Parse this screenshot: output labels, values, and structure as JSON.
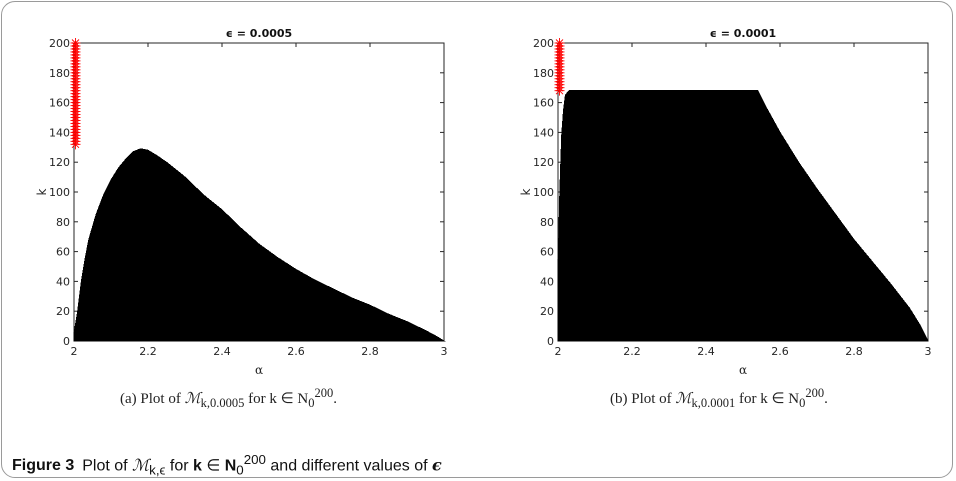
{
  "chart_data": [
    {
      "type": "area",
      "title": "ϵ = 0.0005",
      "xlabel": "α",
      "ylabel": "k",
      "xlim": [
        2,
        3
      ],
      "ylim": [
        0,
        200
      ],
      "x_ticks": [
        "2",
        "2.2",
        "2.4",
        "2.6",
        "2.8",
        "3"
      ],
      "y_ticks": [
        "0",
        "20",
        "40",
        "60",
        "80",
        "100",
        "120",
        "140",
        "160",
        "180",
        "200"
      ],
      "grid": false,
      "fill_color": "#000000",
      "marker_color": "#ff0000",
      "region_upper_boundary": {
        "x": [
          2.0,
          2.01,
          2.02,
          2.03,
          2.04,
          2.06,
          2.08,
          2.1,
          2.12,
          2.14,
          2.16,
          2.18,
          2.2,
          2.22,
          2.25,
          2.3,
          2.35,
          2.4,
          2.45,
          2.5,
          2.55,
          2.6,
          2.65,
          2.7,
          2.75,
          2.8,
          2.85,
          2.9,
          2.95,
          2.98,
          3.0
        ],
        "y": [
          5,
          20,
          40,
          55,
          68,
          85,
          98,
          108,
          116,
          122,
          127,
          129,
          128,
          125,
          120,
          110,
          98,
          88,
          76,
          65,
          56,
          48,
          41,
          35,
          29,
          24,
          18,
          13,
          7,
          3,
          0
        ]
      },
      "red_markers": {
        "x": 2.0,
        "y_range": [
          132,
          200
        ]
      }
    },
    {
      "type": "area",
      "title": "ϵ = 0.0001",
      "xlabel": "α",
      "ylabel": "k",
      "xlim": [
        2,
        3
      ],
      "ylim": [
        0,
        200
      ],
      "x_ticks": [
        "2",
        "2.2",
        "2.4",
        "2.6",
        "2.8",
        "3"
      ],
      "y_ticks": [
        "0",
        "20",
        "40",
        "60",
        "80",
        "100",
        "120",
        "140",
        "160",
        "180",
        "200"
      ],
      "grid": false,
      "fill_color": "#000000",
      "marker_color": "#ff0000",
      "region_upper_boundary": {
        "x": [
          2.0,
          2.005,
          2.01,
          2.015,
          2.02,
          2.03,
          2.54,
          2.56,
          2.6,
          2.65,
          2.7,
          2.75,
          2.8,
          2.85,
          2.9,
          2.95,
          2.98,
          3.0
        ],
        "y": [
          48,
          100,
          138,
          155,
          165,
          168,
          168,
          158,
          140,
          120,
          102,
          85,
          68,
          53,
          38,
          22,
          10,
          0
        ]
      },
      "red_markers": {
        "x": 2.0,
        "y_range": [
          168,
          200
        ]
      }
    }
  ],
  "captions": {
    "a": {
      "prefix": "(a) Plot of ",
      "symbol": "ℳ",
      "sub": "k,0.0005",
      "mid": " for k ∈ N",
      "sub0": "0",
      "sup": "200",
      "end": "."
    },
    "b": {
      "prefix": "(b) Plot of ",
      "symbol": "ℳ",
      "sub": "k,0.0001",
      "mid": " for k ∈ N",
      "sub0": "0",
      "sup": "200",
      "end": "."
    }
  },
  "figure_caption": {
    "label": "Figure 3",
    "t1": "Plot of ",
    "symbol": "ℳ",
    "sub": "k,ϵ",
    "t2": " for ",
    "k": "k",
    "t3": " ∈ ",
    "N": "N",
    "sub0": "0",
    "sup": "200",
    "t4": " and different values of ",
    "eps": "ϵ"
  }
}
